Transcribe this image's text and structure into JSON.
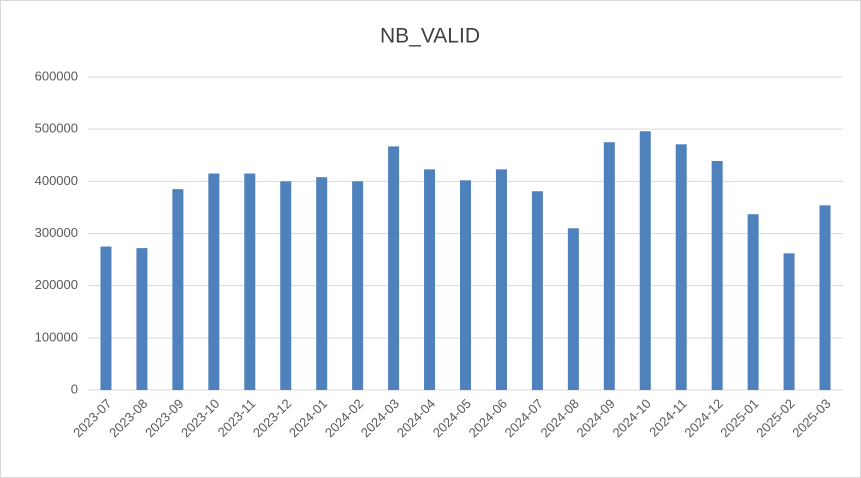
{
  "chart_data": {
    "type": "bar",
    "title": "NB_VALID",
    "categories": [
      "2023-07",
      "2023-08",
      "2023-09",
      "2023-10",
      "2023-11",
      "2023-12",
      "2024-01",
      "2024-02",
      "2024-03",
      "2024-04",
      "2024-05",
      "2024-06",
      "2024-07",
      "2024-08",
      "2024-09",
      "2024-10",
      "2024-11",
      "2024-12",
      "2025-01",
      "2025-02",
      "2025-03"
    ],
    "values": [
      275000,
      272000,
      385000,
      415000,
      415000,
      400000,
      408000,
      400000,
      467000,
      423000,
      402000,
      423000,
      381000,
      310000,
      475000,
      496000,
      471000,
      439000,
      337000,
      262000,
      354000
    ],
    "color": "#4f81bd",
    "ylim": [
      0,
      600000
    ],
    "yticks": [
      0,
      100000,
      200000,
      300000,
      400000,
      500000,
      600000
    ],
    "grid": true
  }
}
